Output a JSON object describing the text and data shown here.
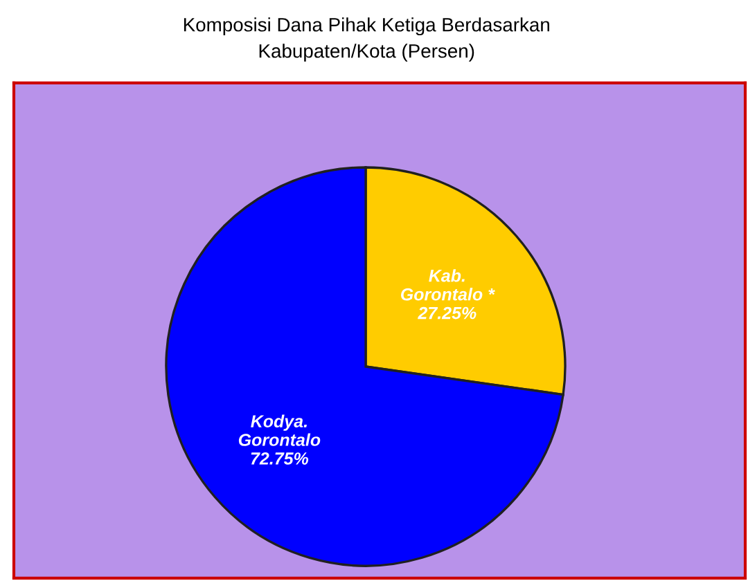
{
  "chart_data": {
    "type": "pie",
    "title": "Komposisi Dana Pihak Ketiga Berdasarkan\nKabupaten/Kota (Persen)",
    "categories": [
      "Kab.\nGorontalo *",
      "Kodya.\nGorontalo"
    ],
    "values": [
      27.25,
      72.75
    ],
    "colors": [
      "#ffcc00",
      "#0000ff"
    ],
    "value_labels": [
      "27.25%",
      "72.75%"
    ],
    "legend": false
  }
}
